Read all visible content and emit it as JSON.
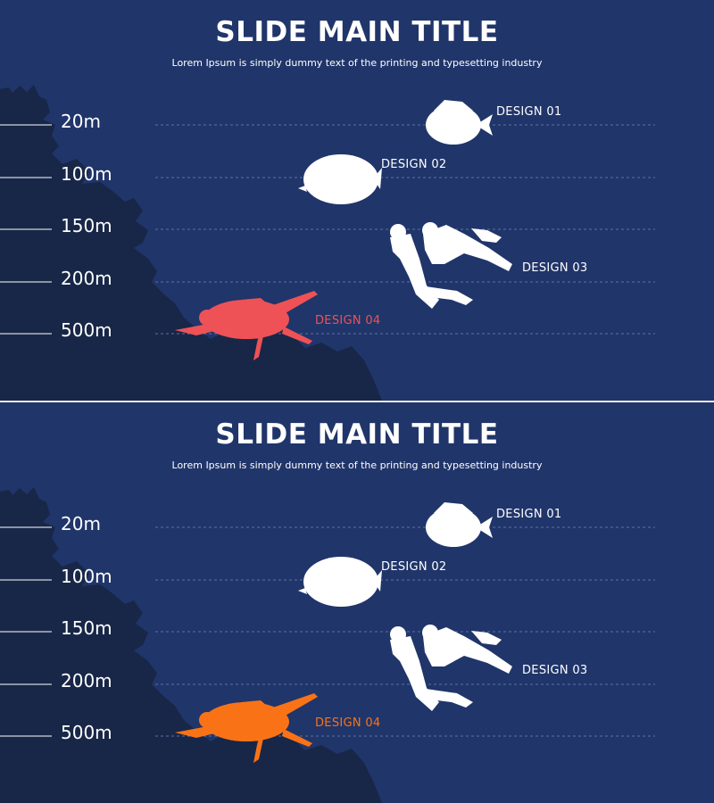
{
  "slides": [
    {
      "title": "SLIDE MAIN TITLE",
      "subtitle": "Lorem Ipsum is simply dummy text of the printing and typesetting industry",
      "depths": [
        "20m",
        "100m",
        "150m",
        "200m",
        "500m"
      ],
      "designs": [
        "DESIGN 01",
        "DESIGN 02",
        "DESIGN 03",
        "DESIGN 04"
      ],
      "turtle_color": "#ee5256"
    },
    {
      "title": "SLIDE MAIN TITLE",
      "subtitle": "Lorem Ipsum is simply dummy text of the printing and typesetting industry",
      "depths": [
        "20m",
        "100m",
        "150m",
        "200m",
        "500m"
      ],
      "designs": [
        "DESIGN 01",
        "DESIGN 02",
        "DESIGN 03",
        "DESIGN 04"
      ],
      "turtle_color": "#f97316"
    }
  ],
  "colors": {
    "background": "#20356a",
    "reef": "#182747",
    "text": "#ffffff"
  }
}
